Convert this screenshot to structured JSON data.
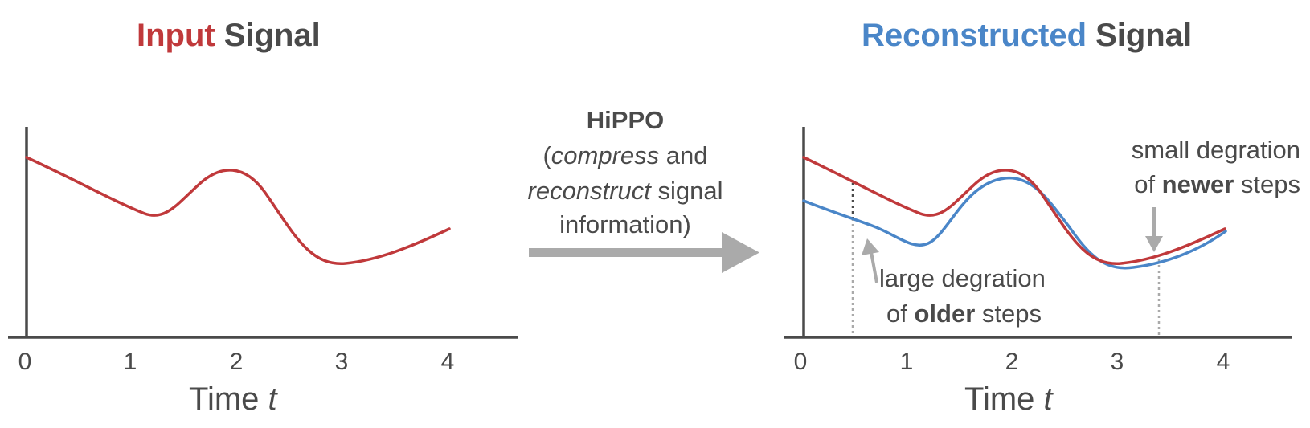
{
  "left_panel": {
    "title_part1": "Input",
    "title_part2": "Signal",
    "xlabel_prefix": "Time ",
    "xlabel_var": "t"
  },
  "right_panel": {
    "title_part1": "Reconstructed",
    "title_part2": "Signal",
    "xlabel_prefix": "Time ",
    "xlabel_var": "t",
    "annotation_newer": {
      "line1": "small degration",
      "line2_prefix": "of ",
      "line2_bold": "newer",
      "line2_suffix": " steps"
    },
    "annotation_older": {
      "line1": "large degration",
      "line2_prefix": "of ",
      "line2_bold": "older",
      "line2_suffix": " steps"
    }
  },
  "middle": {
    "title": "HiPPO",
    "line1_open": "(",
    "line1_italic": "compress",
    "line1_rest": " and",
    "line2_italic": "reconstruct",
    "line2_rest": " signal",
    "line3": "information)"
  },
  "colors": {
    "input": "#c0393b",
    "reconstructed": "#4a86c8",
    "text": "#4a4a4a",
    "arrow": "#aaaaaa"
  },
  "chart_data": [
    {
      "type": "line",
      "title": "Input Signal",
      "xlabel": "Time t",
      "x_ticks": [
        "0",
        "1",
        "2",
        "3",
        "4"
      ],
      "xlim": [
        0,
        4.6
      ],
      "series": [
        {
          "x": [
            0,
            0.5,
            1.0,
            1.2,
            1.5,
            1.9,
            2.2,
            2.6,
            3.0,
            3.2,
            3.6,
            4.0
          ],
          "y": [
            0.86,
            0.72,
            0.58,
            0.56,
            0.72,
            0.8,
            0.64,
            0.4,
            0.35,
            0.36,
            0.41,
            0.5
          ]
        }
      ]
    },
    {
      "type": "line",
      "title": "Reconstructed Signal",
      "xlabel": "Time t",
      "x_ticks": [
        "0",
        "1",
        "2",
        "3",
        "4"
      ],
      "xlim": [
        0,
        4.6
      ],
      "series": [
        {
          "x": [
            0,
            0.5,
            1.0,
            1.2,
            1.5,
            1.9,
            2.2,
            2.6,
            3.0,
            3.2,
            3.6,
            4.0
          ],
          "y": [
            0.86,
            0.72,
            0.58,
            0.56,
            0.72,
            0.8,
            0.64,
            0.4,
            0.35,
            0.36,
            0.41,
            0.5
          ]
        },
        {
          "x": [
            0,
            0.5,
            1.0,
            1.1,
            1.5,
            1.9,
            2.2,
            2.6,
            3.0,
            3.2,
            3.6,
            4.0
          ],
          "y": [
            0.66,
            0.58,
            0.47,
            0.46,
            0.66,
            0.76,
            0.6,
            0.37,
            0.32,
            0.34,
            0.4,
            0.5
          ]
        }
      ]
    }
  ]
}
